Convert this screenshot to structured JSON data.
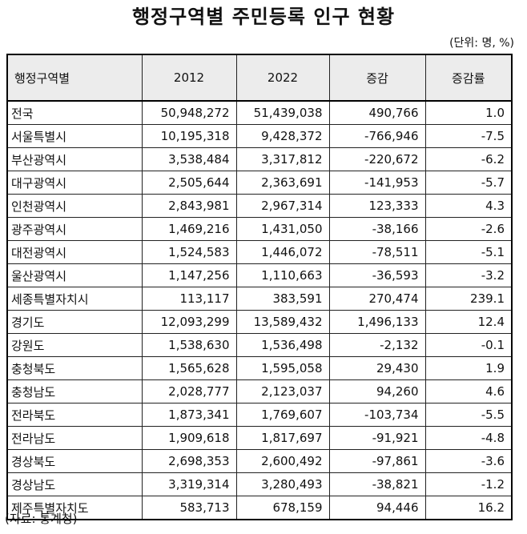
{
  "title": "행정구역별 주민등록 인구 현황",
  "unit": "(단위: 명, %)",
  "table": {
    "columns": [
      "행정구역별",
      "2012",
      "2022",
      "증감",
      "증감률"
    ],
    "rows": [
      [
        "전국",
        "50,948,272",
        "51,439,038",
        "490,766",
        "1.0"
      ],
      [
        "서울특별시",
        "10,195,318",
        "9,428,372",
        "-766,946",
        "-7.5"
      ],
      [
        "부산광역시",
        "3,538,484",
        "3,317,812",
        "-220,672",
        "-6.2"
      ],
      [
        "대구광역시",
        "2,505,644",
        "2,363,691",
        "-141,953",
        "-5.7"
      ],
      [
        "인천광역시",
        "2,843,981",
        "2,967,314",
        "123,333",
        "4.3"
      ],
      [
        "광주광역시",
        "1,469,216",
        "1,431,050",
        "-38,166",
        "-2.6"
      ],
      [
        "대전광역시",
        "1,524,583",
        "1,446,072",
        "-78,511",
        "-5.1"
      ],
      [
        "울산광역시",
        "1,147,256",
        "1,110,663",
        "-36,593",
        "-3.2"
      ],
      [
        "세종특별자치시",
        "113,117",
        "383,591",
        "270,474",
        "239.1"
      ],
      [
        "경기도",
        "12,093,299",
        "13,589,432",
        "1,496,133",
        "12.4"
      ],
      [
        "강원도",
        "1,538,630",
        "1,536,498",
        "-2,132",
        "-0.1"
      ],
      [
        "충청북도",
        "1,565,628",
        "1,595,058",
        "29,430",
        "1.9"
      ],
      [
        "충청남도",
        "2,028,777",
        "2,123,037",
        "94,260",
        "4.6"
      ],
      [
        "전라북도",
        "1,873,341",
        "1,769,607",
        "-103,734",
        "-5.5"
      ],
      [
        "전라남도",
        "1,909,618",
        "1,817,697",
        "-91,921",
        "-4.8"
      ],
      [
        "경상북도",
        "2,698,353",
        "2,600,492",
        "-97,861",
        "-3.6"
      ],
      [
        "경상남도",
        "3,319,314",
        "3,280,493",
        "-38,821",
        "-1.2"
      ],
      [
        "제주특별자치도",
        "583,713",
        "678,159",
        "94,446",
        "16.2"
      ]
    ]
  },
  "source": "(자료: 통계청)"
}
